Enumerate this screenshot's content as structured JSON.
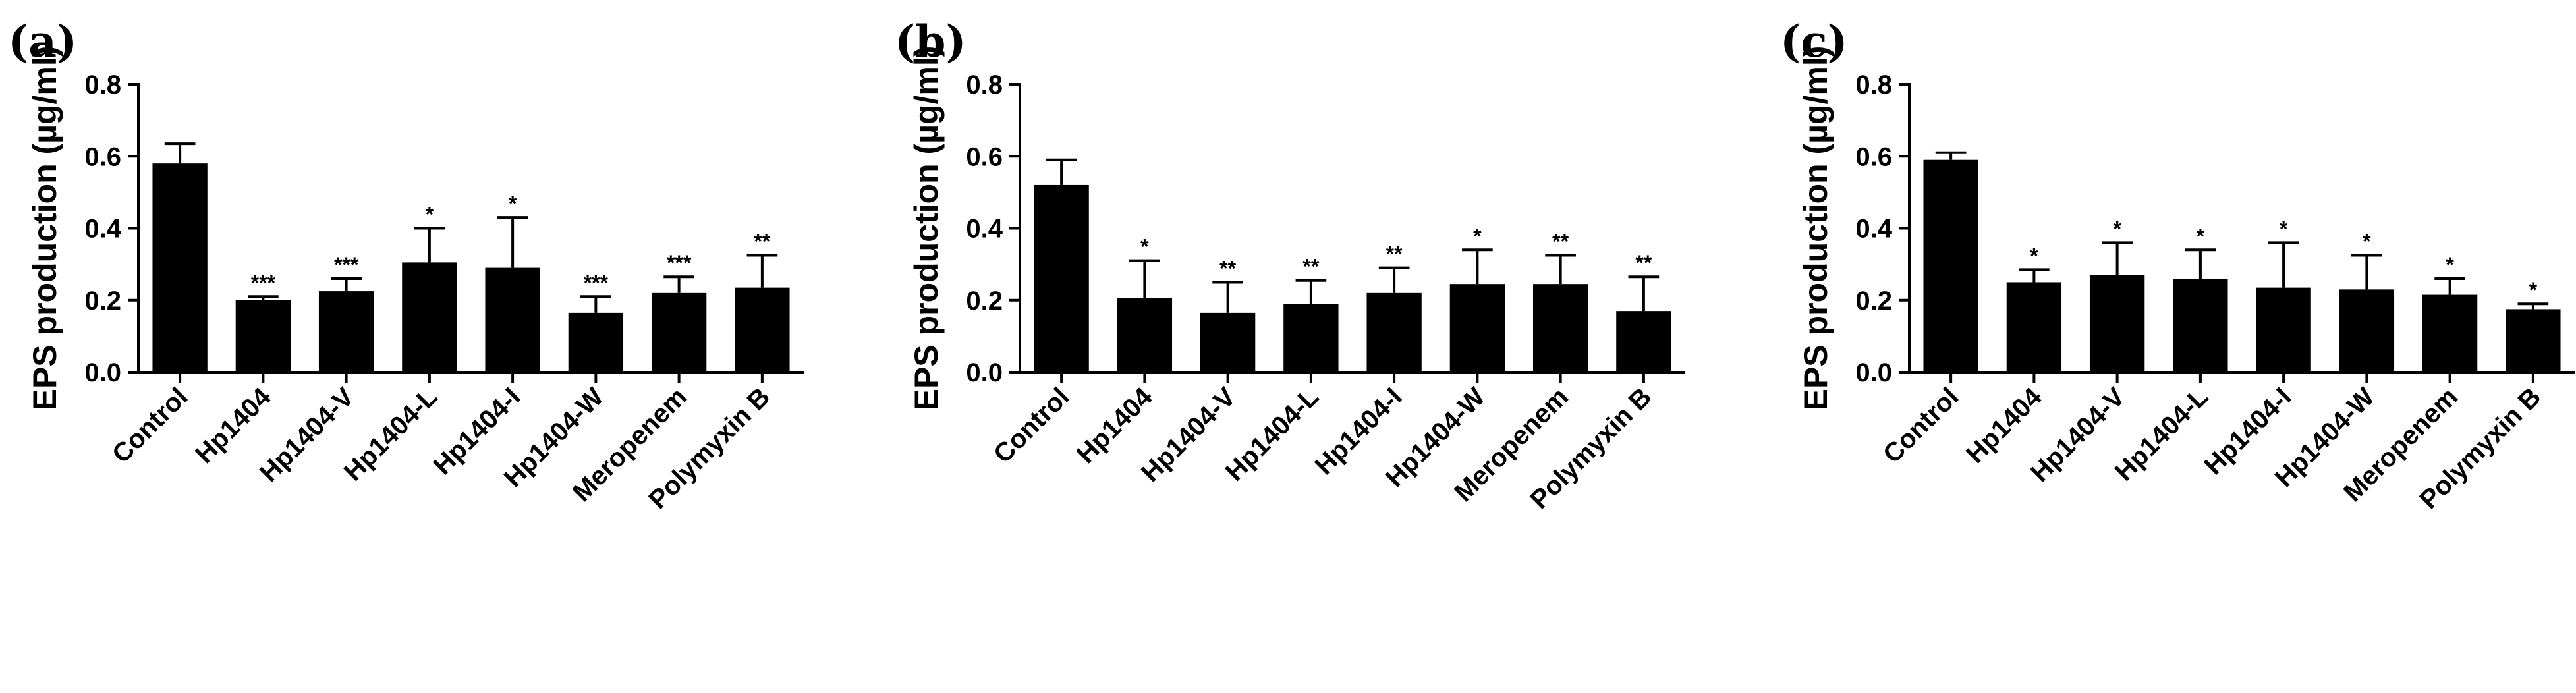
{
  "chart_data": [
    {
      "type": "bar",
      "panel_label": "(a)",
      "ylabel": "EPS production (µg/ml)",
      "ylim": [
        0,
        0.8
      ],
      "yticks": [
        "0.0",
        "0.2",
        "0.4",
        "0.6",
        "0.8"
      ],
      "categories": [
        "Control",
        "Hp1404",
        "Hp1404-V",
        "Hp1404-L",
        "Hp1404-I",
        "Hp1404-W",
        "Meropenem",
        "Polymyxin B"
      ],
      "values": [
        0.58,
        0.2,
        0.225,
        0.305,
        0.29,
        0.165,
        0.22,
        0.235
      ],
      "errors": [
        0.055,
        0.01,
        0.035,
        0.095,
        0.14,
        0.045,
        0.045,
        0.09
      ],
      "significance": [
        "",
        "***",
        "***",
        "*",
        "*",
        "***",
        "***",
        "**"
      ],
      "color": "#000000"
    },
    {
      "type": "bar",
      "panel_label": "(b)",
      "ylabel": "EPS production (µg/ml)",
      "ylim": [
        0,
        0.8
      ],
      "yticks": [
        "0.0",
        "0.2",
        "0.4",
        "0.6",
        "0.8"
      ],
      "categories": [
        "Control",
        "Hp1404",
        "Hp1404-V",
        "Hp1404-L",
        "Hp1404-I",
        "Hp1404-W",
        "Meropenem",
        "Polymyxin B"
      ],
      "values": [
        0.52,
        0.205,
        0.165,
        0.19,
        0.22,
        0.245,
        0.245,
        0.17
      ],
      "errors": [
        0.07,
        0.105,
        0.085,
        0.065,
        0.07,
        0.095,
        0.08,
        0.095
      ],
      "significance": [
        "",
        "*",
        "**",
        "**",
        "**",
        "*",
        "**",
        "**"
      ],
      "color": "#000000"
    },
    {
      "type": "bar",
      "panel_label": "(c)",
      "ylabel": "EPS production (µg/ml)",
      "ylim": [
        0,
        0.8
      ],
      "yticks": [
        "0.0",
        "0.2",
        "0.4",
        "0.6",
        "0.8"
      ],
      "categories": [
        "Control",
        "Hp1404",
        "Hp1404-V",
        "Hp1404-L",
        "Hp1404-I",
        "Hp1404-W",
        "Meropenem",
        "Polymyxin B"
      ],
      "values": [
        0.59,
        0.25,
        0.27,
        0.26,
        0.235,
        0.23,
        0.215,
        0.175
      ],
      "errors": [
        0.02,
        0.035,
        0.09,
        0.08,
        0.125,
        0.095,
        0.045,
        0.015
      ],
      "significance": [
        "",
        "*",
        "*",
        "*",
        "*",
        "*",
        "*",
        "*"
      ],
      "color": "#000000"
    }
  ]
}
